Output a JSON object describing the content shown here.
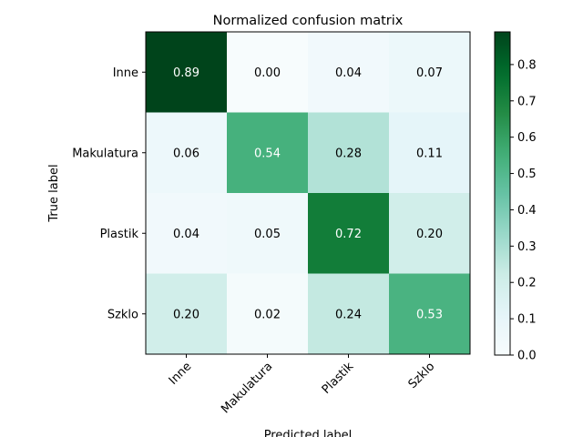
{
  "chart_data": {
    "type": "heatmap",
    "title": "Normalized confusion matrix",
    "xlabel": "Predicted label",
    "ylabel": "True label",
    "x_categories": [
      "Inne",
      "Makulatura",
      "Plastik",
      "Szklo"
    ],
    "y_categories": [
      "Inne",
      "Makulatura",
      "Plastik",
      "Szklo"
    ],
    "values": [
      [
        0.89,
        0.0,
        0.04,
        0.07
      ],
      [
        0.06,
        0.54,
        0.28,
        0.11
      ],
      [
        0.04,
        0.05,
        0.72,
        0.2
      ],
      [
        0.2,
        0.02,
        0.24,
        0.53
      ]
    ],
    "cell_labels": [
      [
        "0.89",
        "0.00",
        "0.04",
        "0.07"
      ],
      [
        "0.06",
        "0.54",
        "0.28",
        "0.11"
      ],
      [
        "0.04",
        "0.05",
        "0.72",
        "0.20"
      ],
      [
        "0.20",
        "0.02",
        "0.24",
        "0.53"
      ]
    ],
    "colormap": "Greens",
    "color_range": [
      0,
      0.89
    ],
    "colorbar_ticks": [
      0.0,
      0.1,
      0.2,
      0.3,
      0.4,
      0.5,
      0.6,
      0.7,
      0.8
    ],
    "colorbar_tick_labels": [
      "0.0",
      "0.1",
      "0.2",
      "0.3",
      "0.4",
      "0.5",
      "0.6",
      "0.7",
      "0.8"
    ],
    "x_tick_rotation": 45,
    "label_dark_color": "#000000",
    "label_light_color": "#ffffff"
  }
}
